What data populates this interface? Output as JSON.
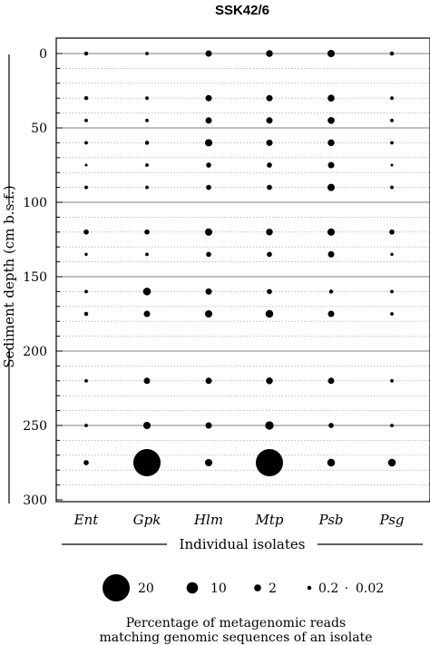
{
  "chart_data": {
    "type": "scatter",
    "subtype": "bubble",
    "title": "SSK42/6",
    "ylabel": "Sediment depth (cm b.s.f.)",
    "xlabel": "Individual isolates",
    "categories": [
      "Ent",
      "Gpk",
      "Hlm",
      "Mtp",
      "Psb",
      "Psg"
    ],
    "y_ticks": [
      "0",
      "50",
      "100",
      "150",
      "200",
      "250",
      "300"
    ],
    "ylim": [
      0,
      300
    ],
    "y_inverted": true,
    "depths": [
      0,
      30,
      45,
      60,
      75,
      90,
      120,
      135,
      160,
      175,
      220,
      250,
      275
    ],
    "series": [
      {
        "name": "Ent",
        "values": [
          0.2,
          0.2,
          0.1,
          0.1,
          0.02,
          0.1,
          0.5,
          0.05,
          0.1,
          0.2,
          0.1,
          0.1,
          0.5
        ]
      },
      {
        "name": "Gpk",
        "values": [
          0.1,
          0.1,
          0.1,
          0.2,
          0.1,
          0.1,
          0.5,
          0.1,
          3,
          1,
          1,
          1.5,
          20
        ]
      },
      {
        "name": "Hlm",
        "values": [
          1,
          1,
          1,
          1.5,
          0.5,
          0.5,
          1.5,
          0.5,
          1,
          1.5,
          1,
          1,
          1.5
        ]
      },
      {
        "name": "Mtp",
        "values": [
          1.2,
          1,
          1,
          1,
          0.5,
          0.5,
          1.2,
          0.5,
          0.5,
          3,
          1.2,
          4,
          50
        ]
      },
      {
        "name": "Psb",
        "values": [
          1.5,
          2,
          2,
          1.2,
          1,
          1.5,
          1.5,
          1,
          0.2,
          1,
          1,
          0.5,
          3
        ]
      },
      {
        "name": "Psg",
        "values": [
          0.2,
          0.1,
          0.1,
          0.1,
          0.02,
          0.1,
          0.5,
          0.05,
          0.1,
          0.1,
          0.1,
          0.1,
          3
        ]
      }
    ],
    "bubble_legend": [
      {
        "label": "20",
        "value": 20
      },
      {
        "label": "10",
        "value": 10
      },
      {
        "label": "2",
        "value": 2
      },
      {
        "label": "0.2",
        "value": 0.2
      },
      {
        "label": "0.02",
        "value": 0.02
      }
    ],
    "legend_separator": "·",
    "caption_lines": [
      "Percentage of metagenomic reads",
      "matching genomic sequences of an isolate"
    ],
    "grid": true
  }
}
